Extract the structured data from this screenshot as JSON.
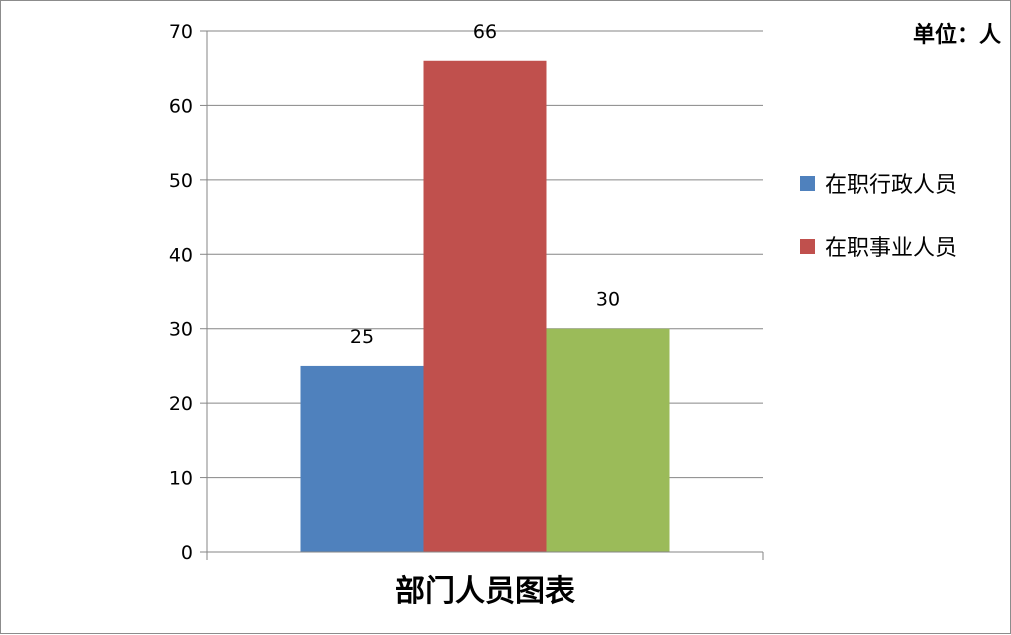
{
  "chart_data": {
    "type": "bar",
    "categories": [
      ""
    ],
    "series": [
      {
        "name": "在职行政人员",
        "values": [
          25
        ],
        "color": "#4F81BD"
      },
      {
        "name": "在职事业人员",
        "values": [
          66
        ],
        "color": "#C0504D"
      },
      {
        "name": "",
        "values": [
          30
        ],
        "color": "#9BBB59"
      }
    ],
    "xlabel": "部门人员图表",
    "ylabel": "",
    "unit_note": "单位：人",
    "ylim": [
      0,
      70
    ],
    "yticks": [
      "0",
      "10",
      "20",
      "30",
      "40",
      "50",
      "60",
      "70"
    ],
    "grid": true,
    "legend": "right",
    "data_labels": [
      "25",
      "66",
      "30"
    ]
  }
}
